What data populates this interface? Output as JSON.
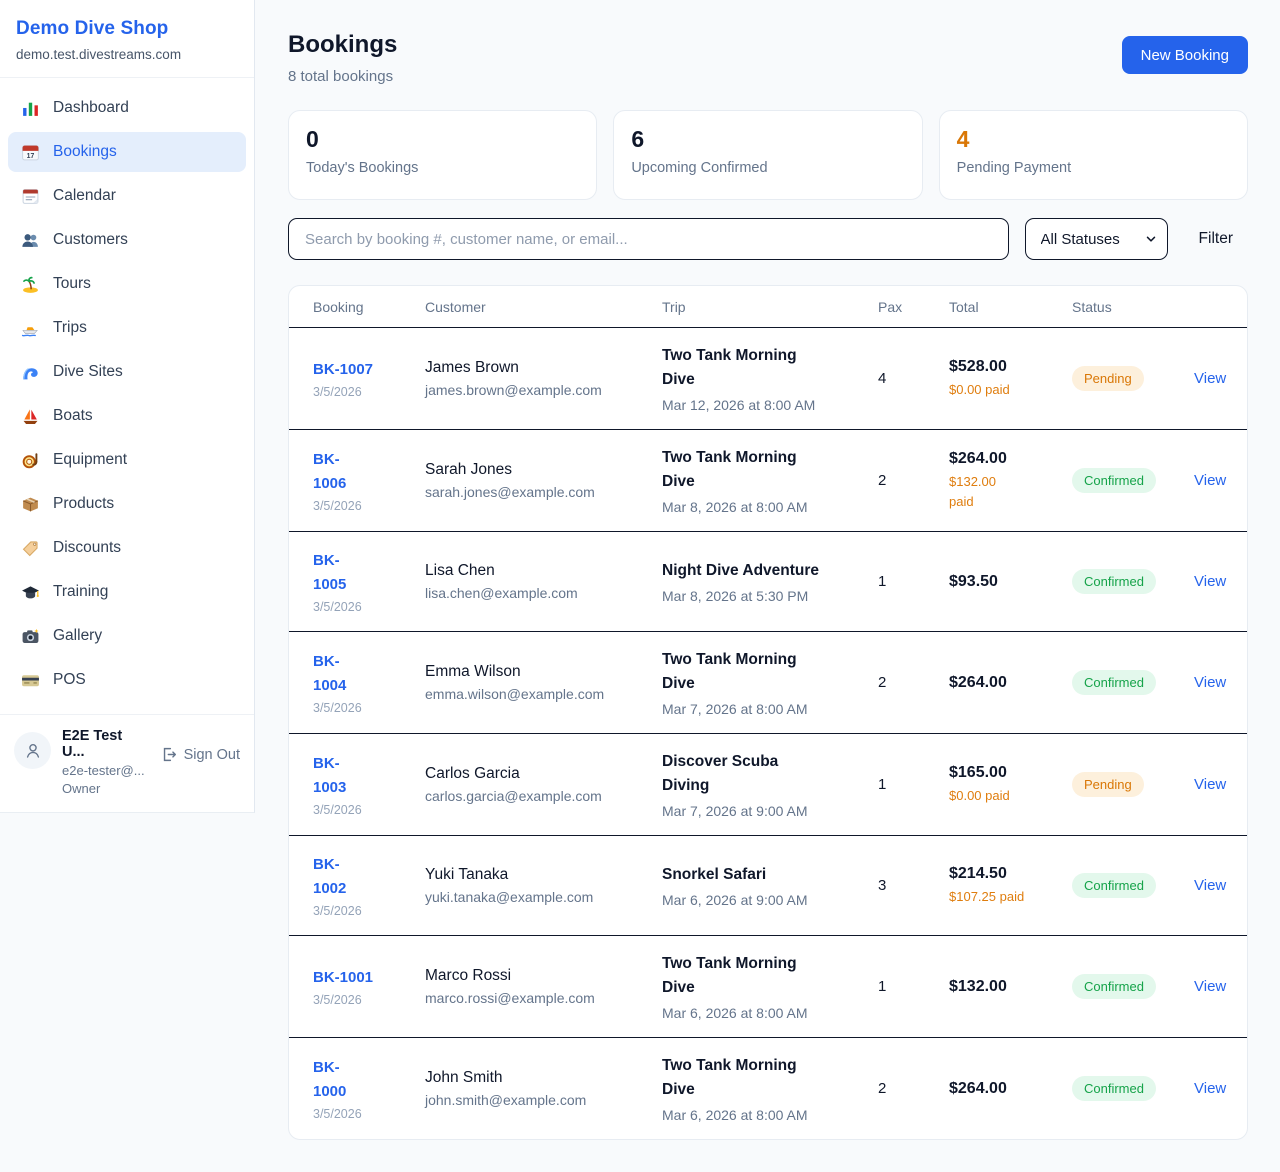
{
  "colors": {
    "accent": "#2563eb",
    "pending_orange": "#d97706",
    "paid_orange": "#df7d0e",
    "confirmed_green": "#16a34a",
    "page_background": "#f8fafc"
  },
  "sidebar": {
    "shop_name": "Demo Dive Shop",
    "shop_domain": "demo.test.divestreams.com",
    "items": [
      {
        "label": "Dashboard",
        "icon": "dashboard-icon",
        "active": false
      },
      {
        "label": "Bookings",
        "icon": "bookings-icon",
        "active": true
      },
      {
        "label": "Calendar",
        "icon": "calendar-icon",
        "active": false
      },
      {
        "label": "Customers",
        "icon": "customers-icon",
        "active": false
      },
      {
        "label": "Tours",
        "icon": "tours-icon",
        "active": false
      },
      {
        "label": "Trips",
        "icon": "trips-icon",
        "active": false
      },
      {
        "label": "Dive Sites",
        "icon": "dive-sites-icon",
        "active": false
      },
      {
        "label": "Boats",
        "icon": "boats-icon",
        "active": false
      },
      {
        "label": "Equipment",
        "icon": "equipment-icon",
        "active": false
      },
      {
        "label": "Products",
        "icon": "products-icon",
        "active": false
      },
      {
        "label": "Discounts",
        "icon": "discounts-icon",
        "active": false
      },
      {
        "label": "Training",
        "icon": "training-icon",
        "active": false
      },
      {
        "label": "Gallery",
        "icon": "gallery-icon",
        "active": false
      },
      {
        "label": "POS",
        "icon": "pos-icon",
        "active": false
      }
    ],
    "user": {
      "name": "E2E Test U...",
      "email": "e2e-tester@...",
      "role": "Owner",
      "sign_out_label": "Sign Out"
    }
  },
  "header": {
    "title": "Bookings",
    "subtitle": "8 total bookings",
    "new_booking_label": "New Booking"
  },
  "stats": [
    {
      "value": "0",
      "label": "Today's Bookings",
      "value_color": "#0f172a"
    },
    {
      "value": "6",
      "label": "Upcoming Confirmed",
      "value_color": "#0f172a"
    },
    {
      "value": "4",
      "label": "Pending Payment",
      "value_color": "#d97706"
    }
  ],
  "filters": {
    "search_placeholder": "Search by booking #, customer name, or email...",
    "status_select_value": "All Statuses",
    "filter_label": "Filter"
  },
  "table": {
    "columns": [
      "Booking",
      "Customer",
      "Trip",
      "Pax",
      "Total",
      "Status",
      ""
    ],
    "view_label": "View",
    "rows": [
      {
        "id": "BK-1007",
        "date": "3/5/2026",
        "customer": "James Brown",
        "email": "james.brown@example.com",
        "trip": "Two Tank Morning\nDive",
        "trip_datetime": "Mar 12, 2026 at 8:00 AM",
        "pax": "4",
        "total": "$528.00",
        "paid": "$0.00 paid",
        "status": "Pending"
      },
      {
        "id": "BK-\n1006",
        "date": "3/5/2026",
        "customer": "Sarah Jones",
        "email": "sarah.jones@example.com",
        "trip": "Two Tank Morning\nDive",
        "trip_datetime": "Mar 8, 2026 at 8:00 AM",
        "pax": "2",
        "total": "$264.00",
        "paid": "$132.00\npaid",
        "status": "Confirmed"
      },
      {
        "id": "BK-\n1005",
        "date": "3/5/2026",
        "customer": "Lisa Chen",
        "email": "lisa.chen@example.com",
        "trip": "Night Dive Adventure",
        "trip_datetime": "Mar 8, 2026 at 5:30 PM",
        "pax": "1",
        "total": "$93.50",
        "paid": null,
        "status": "Confirmed"
      },
      {
        "id": "BK-\n1004",
        "date": "3/5/2026",
        "customer": "Emma Wilson",
        "email": "emma.wilson@example.com",
        "trip": "Two Tank Morning\nDive",
        "trip_datetime": "Mar 7, 2026 at 8:00 AM",
        "pax": "2",
        "total": "$264.00",
        "paid": null,
        "status": "Confirmed"
      },
      {
        "id": "BK-\n1003",
        "date": "3/5/2026",
        "customer": "Carlos Garcia",
        "email": "carlos.garcia@example.com",
        "trip": "Discover Scuba\nDiving",
        "trip_datetime": "Mar 7, 2026 at 9:00 AM",
        "pax": "1",
        "total": "$165.00",
        "paid": "$0.00 paid",
        "status": "Pending"
      },
      {
        "id": "BK-\n1002",
        "date": "3/5/2026",
        "customer": "Yuki Tanaka",
        "email": "yuki.tanaka@example.com",
        "trip": "Snorkel Safari",
        "trip_datetime": "Mar 6, 2026 at 9:00 AM",
        "pax": "3",
        "total": "$214.50",
        "paid": "$107.25 paid",
        "status": "Confirmed"
      },
      {
        "id": "BK-1001",
        "date": "3/5/2026",
        "customer": "Marco Rossi",
        "email": "marco.rossi@example.com",
        "trip": "Two Tank Morning\nDive",
        "trip_datetime": "Mar 6, 2026 at 8:00 AM",
        "pax": "1",
        "total": "$132.00",
        "paid": null,
        "status": "Confirmed"
      },
      {
        "id": "BK-\n1000",
        "date": "3/5/2026",
        "customer": "John Smith",
        "email": "john.smith@example.com",
        "trip": "Two Tank Morning\nDive",
        "trip_datetime": "Mar 6, 2026 at 8:00 AM",
        "pax": "2",
        "total": "$264.00",
        "paid": null,
        "status": "Confirmed"
      }
    ]
  }
}
